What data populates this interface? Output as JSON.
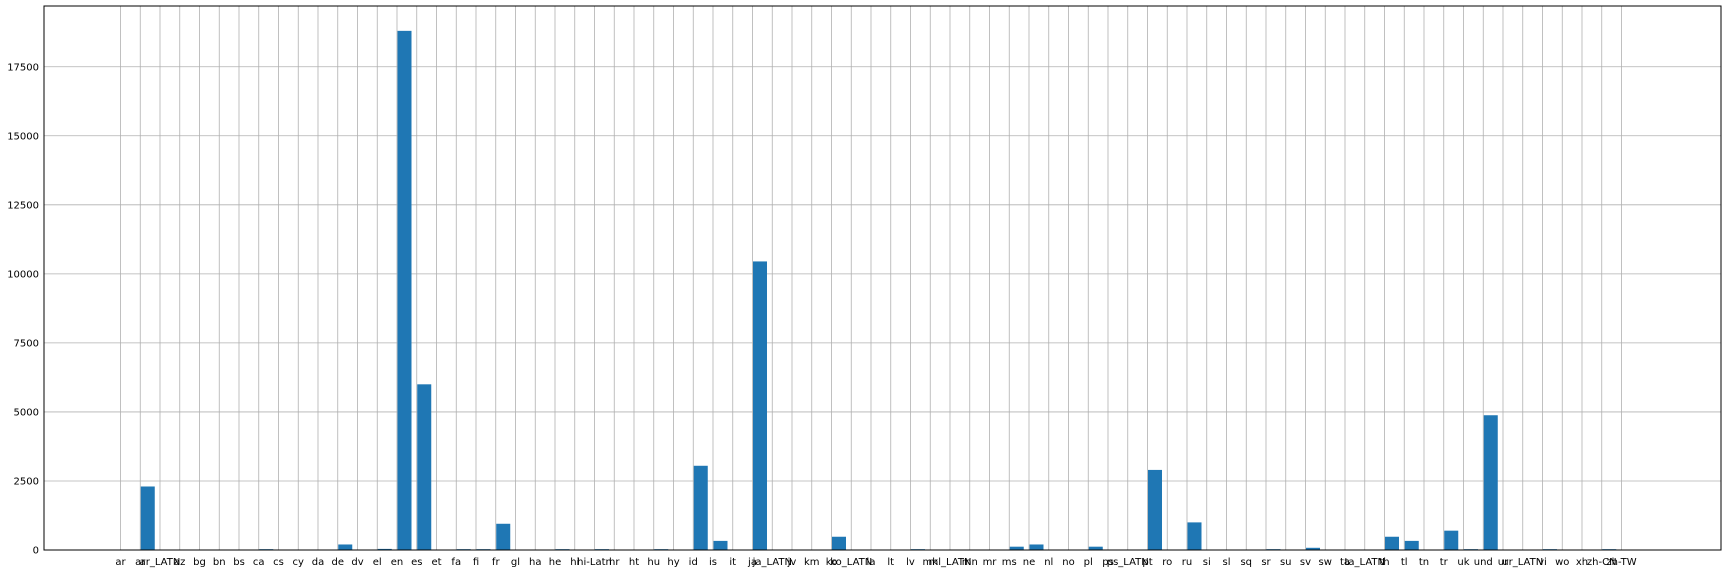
{
  "chart_data": {
    "type": "bar",
    "title": "",
    "xlabel": "",
    "ylabel": "",
    "ylim": [
      0,
      19700
    ],
    "y_ticks": [
      0,
      2500,
      5000,
      7500,
      10000,
      12500,
      15000,
      17500
    ],
    "grid": true,
    "bar_color": "#1f77b4",
    "categories": [
      "ar",
      "ar",
      "ar_LATN",
      "az",
      "bg",
      "bn",
      "bs",
      "ca",
      "cs",
      "cy",
      "da",
      "de",
      "dv",
      "el",
      "en",
      "es",
      "et",
      "fa",
      "fi",
      "fr",
      "gl",
      "ha",
      "he",
      "hi",
      "hi-Latn",
      "hr",
      "ht",
      "hu",
      "hy",
      "id",
      "is",
      "it",
      "ja",
      "ja_LATN",
      "jv",
      "km",
      "ko",
      "ko_LATN",
      "la",
      "lt",
      "lv",
      "mk",
      "ml_LATN",
      "mn",
      "mr",
      "ms",
      "ne",
      "nl",
      "no",
      "pl",
      "ps",
      "ps_LATN",
      "pt",
      "ro",
      "ru",
      "si",
      "sl",
      "sq",
      "sr",
      "su",
      "sv",
      "sw",
      "ta",
      "ta_LATN",
      "th",
      "tl",
      "tn",
      "tr",
      "uk",
      "und",
      "ur",
      "ur_LATN",
      "vi",
      "wo",
      "xh",
      "zh-CN",
      "zh-TW"
    ],
    "values": [
      0,
      2300,
      0,
      0,
      0,
      0,
      0,
      30,
      0,
      0,
      0,
      200,
      0,
      40,
      18800,
      6000,
      0,
      30,
      30,
      950,
      0,
      0,
      30,
      0,
      30,
      0,
      0,
      30,
      0,
      3050,
      330,
      0,
      10450,
      0,
      0,
      0,
      480,
      0,
      0,
      0,
      30,
      0,
      0,
      0,
      0,
      120,
      200,
      0,
      0,
      120,
      0,
      0,
      2900,
      0,
      1000,
      0,
      0,
      0,
      30,
      0,
      80,
      0,
      0,
      0,
      480,
      330,
      0,
      700,
      30,
      4880,
      0,
      0,
      30,
      0,
      0,
      30,
      0
    ]
  }
}
